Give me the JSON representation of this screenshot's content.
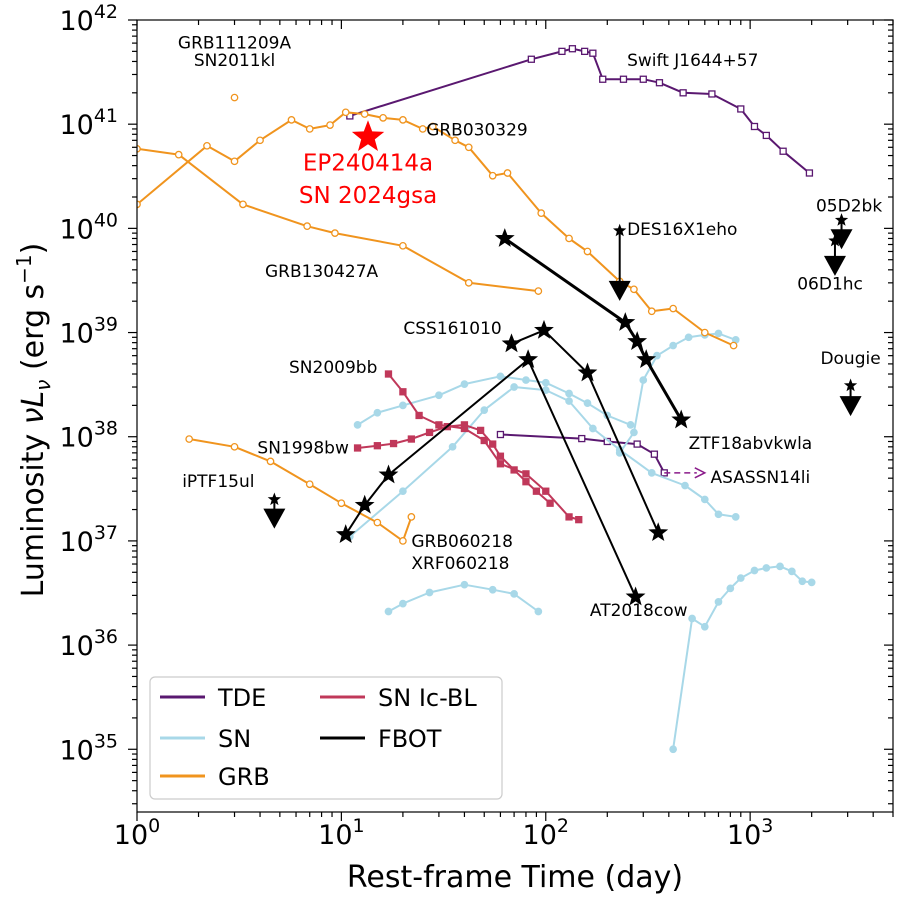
{
  "chart_data": {
    "type": "line",
    "xlabel": "Rest-frame Time (day)",
    "ylabel_main": "Luminosity ",
    "ylabel_sym": "νL",
    "ylabel_sub": "ν",
    "ylabel_unit_a": " (erg s",
    "ylabel_unit_exp": "−1",
    "ylabel_unit_b": ")",
    "xscale": "log",
    "yscale": "log",
    "xlim": [
      1,
      5000
    ],
    "ylim": [
      2.5e+34,
      1e+42
    ],
    "x_ticks": [
      {
        "value": 1,
        "base": "10",
        "exp": "0"
      },
      {
        "value": 10,
        "base": "10",
        "exp": "1"
      },
      {
        "value": 100,
        "base": "10",
        "exp": "2"
      },
      {
        "value": 1000,
        "base": "10",
        "exp": "3"
      }
    ],
    "y_ticks": [
      {
        "value": 1e+35,
        "base": "10",
        "exp": "35"
      },
      {
        "value": 1e+36,
        "base": "10",
        "exp": "36"
      },
      {
        "value": 1e+37,
        "base": "10",
        "exp": "37"
      },
      {
        "value": 1e+38,
        "base": "10",
        "exp": "38"
      },
      {
        "value": 1e+39,
        "base": "10",
        "exp": "39"
      },
      {
        "value": 1e+40,
        "base": "10",
        "exp": "40"
      },
      {
        "value": 1e+41,
        "base": "10",
        "exp": "41"
      },
      {
        "value": 1e+42,
        "base": "10",
        "exp": "42"
      }
    ],
    "colors": {
      "TDE": "#5a1870",
      "SN": "#a8d8e8",
      "GRB": "#f0941e",
      "SN Ic-BL": "#c0385a",
      "FBOT": "#000000",
      "highlight": "#ff0000"
    },
    "legend": {
      "placement": "lower-left",
      "entries": [
        {
          "label": "TDE",
          "class": "TDE"
        },
        {
          "label": "SN Ic-BL",
          "class": "SN Ic-BL"
        },
        {
          "label": "SN",
          "class": "SN"
        },
        {
          "label": "FBOT",
          "class": "FBOT"
        },
        {
          "label": "GRB",
          "class": "GRB"
        }
      ]
    },
    "series": [
      {
        "class": "TDE",
        "marker": "square",
        "points": [
          [
            11,
            1.2e+41
          ],
          [
            85,
            4.2e+41
          ],
          [
            120,
            5e+41
          ],
          [
            135,
            5.3e+41
          ],
          [
            155,
            5e+41
          ],
          [
            170,
            4.8e+41
          ],
          [
            190,
            2.7e+41
          ],
          [
            240,
            2.7e+41
          ],
          [
            300,
            2.7e+41
          ],
          [
            360,
            2.5e+41
          ],
          [
            470,
            2e+41
          ],
          [
            650,
            1.95e+41
          ],
          [
            900,
            1.4e+41
          ],
          [
            1050,
            9.5e+40
          ],
          [
            1200,
            7.8e+40
          ],
          [
            1450,
            5.5e+40
          ],
          [
            1950,
            3.4e+40
          ]
        ]
      },
      {
        "class": "TDE",
        "marker": "square",
        "points": [
          [
            60,
            1.05e+38
          ],
          [
            150,
            9.6e+37
          ],
          [
            200,
            9e+37
          ],
          [
            280,
            8.5e+37
          ],
          [
            340,
            6.8e+37
          ],
          [
            380,
            4.5e+37
          ]
        ]
      },
      {
        "class": "SN",
        "marker": "circle",
        "points": [
          [
            12,
            1.3e+38
          ],
          [
            15,
            1.7e+38
          ],
          [
            20,
            2e+38
          ],
          [
            30,
            2.5e+38
          ],
          [
            40,
            3.2e+38
          ],
          [
            60,
            3.8e+38
          ],
          [
            80,
            3.5e+38
          ],
          [
            100,
            3.3e+38
          ],
          [
            130,
            2.6e+38
          ],
          [
            160,
            2.1e+38
          ],
          [
            200,
            1.6e+38
          ],
          [
            260,
            1.3e+38
          ]
        ]
      },
      {
        "class": "SN",
        "marker": "circle",
        "points": [
          [
            11,
            1.1e+37
          ],
          [
            20,
            3e+37
          ],
          [
            35,
            8e+37
          ],
          [
            50,
            1.8e+38
          ],
          [
            70,
            3e+38
          ],
          [
            100,
            2.8e+38
          ],
          [
            130,
            2.2e+38
          ],
          [
            170,
            1.2e+38
          ],
          [
            230,
            7.5e+37
          ],
          [
            330,
            4.5e+37
          ],
          [
            480,
            3.4e+37
          ],
          [
            600,
            2.5e+37
          ],
          [
            700,
            1.8e+37
          ],
          [
            850,
            1.7e+37
          ]
        ]
      },
      {
        "class": "SN",
        "marker": "circle",
        "points": [
          [
            17,
            2.1e+36
          ],
          [
            20,
            2.5e+36
          ],
          [
            27,
            3.2e+36
          ],
          [
            40,
            3.8e+36
          ],
          [
            55,
            3.4e+36
          ],
          [
            70,
            3.1e+36
          ],
          [
            92,
            2.1e+36
          ]
        ]
      },
      {
        "class": "SN",
        "marker": "circle",
        "points": [
          [
            230,
            7e+37
          ],
          [
            270,
            1.1e+38
          ],
          [
            300,
            3.5e+38
          ],
          [
            350,
            6e+38
          ],
          [
            420,
            7.5e+38
          ],
          [
            500,
            9e+38
          ],
          [
            600,
            9.5e+38
          ],
          [
            700,
            9.8e+38
          ],
          [
            850,
            8.5e+38
          ]
        ]
      },
      {
        "class": "SN",
        "marker": "circle",
        "points": [
          [
            420,
            1e+35
          ],
          [
            520,
            1.8e+36
          ],
          [
            600,
            1.5e+36
          ],
          [
            700,
            2.6e+36
          ],
          [
            800,
            3.5e+36
          ],
          [
            900,
            4.4e+36
          ],
          [
            1050,
            5.2e+36
          ],
          [
            1200,
            5.5e+36
          ],
          [
            1400,
            5.7e+36
          ],
          [
            1600,
            5.1e+36
          ],
          [
            1800,
            4.1e+36
          ],
          [
            2000,
            4e+36
          ]
        ]
      },
      {
        "class": "GRB",
        "marker": "circle",
        "points": [
          [
            3,
            1.8e+41
          ]
        ]
      },
      {
        "class": "GRB",
        "marker": "circle",
        "points": [
          [
            1,
            1.7e+40
          ],
          [
            2.2,
            6.2e+40
          ],
          [
            3,
            4.4e+40
          ],
          [
            4,
            7e+40
          ],
          [
            5.7,
            1.1e+41
          ],
          [
            7,
            9e+40
          ],
          [
            8.8,
            9.8e+40
          ],
          [
            10.5,
            1.3e+41
          ],
          [
            13,
            1.25e+41
          ],
          [
            16,
            1.15e+41
          ],
          [
            20,
            1.1e+41
          ],
          [
            25,
            9e+40
          ],
          [
            28,
            9.5e+40
          ],
          [
            36,
            7e+40
          ],
          [
            42,
            6e+40
          ],
          [
            55,
            3.2e+40
          ],
          [
            65,
            3.4e+40
          ],
          [
            95,
            1.4e+40
          ],
          [
            130,
            8e+39
          ],
          [
            160,
            6e+39
          ],
          [
            230,
            3.1e+39
          ],
          [
            270,
            2.6e+39
          ],
          [
            330,
            1.6e+39
          ],
          [
            420,
            1.7e+39
          ],
          [
            600,
            1e+39
          ],
          [
            830,
            7.5e+38
          ]
        ]
      },
      {
        "class": "GRB",
        "marker": "circle",
        "points": [
          [
            1,
            5.8e+40
          ],
          [
            1.6,
            5.1e+40
          ],
          [
            3.3,
            1.7e+40
          ],
          [
            6.8,
            1.05e+40
          ],
          [
            9.3,
            9e+39
          ],
          [
            20,
            6.8e+39
          ],
          [
            42,
            3e+39
          ],
          [
            92,
            2.5e+39
          ]
        ]
      },
      {
        "class": "GRB",
        "marker": "circle",
        "points": [
          [
            1.8,
            9.5e+37
          ],
          [
            3,
            8e+37
          ],
          [
            4.5,
            5.8e+37
          ],
          [
            7,
            3.5e+37
          ],
          [
            10,
            2.3e+37
          ],
          [
            15,
            1.5e+37
          ],
          [
            20,
            1e+37
          ],
          [
            22,
            1.7e+37
          ]
        ]
      },
      {
        "class": "SN Ic-BL",
        "marker": "square",
        "points": [
          [
            17,
            4e+38
          ],
          [
            20,
            2.7e+38
          ],
          [
            24,
            1.6e+38
          ],
          [
            30,
            1.3e+38
          ],
          [
            40,
            1.2e+38
          ],
          [
            50,
            9.2e+37
          ],
          [
            60,
            5.5e+37
          ],
          [
            80,
            4.4e+37
          ],
          [
            100,
            3e+37
          ],
          [
            130,
            1.7e+37
          ],
          [
            145,
            1.6e+37
          ]
        ]
      },
      {
        "class": "SN Ic-BL",
        "marker": "square",
        "points": [
          [
            12,
            7.8e+37
          ],
          [
            15,
            8.2e+37
          ],
          [
            18,
            8.6e+37
          ],
          [
            22,
            9.5e+37
          ],
          [
            27,
            1.1e+38
          ],
          [
            33,
            1.25e+38
          ],
          [
            40,
            1.3e+38
          ],
          [
            48,
            1.15e+38
          ],
          [
            55,
            8.5e+37
          ],
          [
            60,
            6.5e+37
          ],
          [
            70,
            4.8e+37
          ],
          [
            80,
            3.7e+37
          ],
          [
            90,
            3e+37
          ],
          [
            105,
            2.3e+37
          ]
        ]
      },
      {
        "class": "FBOT",
        "marker": "star",
        "width": 3,
        "points": [
          [
            63,
            8e+39
          ],
          [
            245,
            1.25e+39
          ],
          [
            280,
            8.2e+38
          ],
          [
            310,
            5.5e+38
          ],
          [
            460,
            1.45e+38
          ]
        ]
      },
      {
        "class": "FBOT",
        "marker": "star",
        "width": 2,
        "points": [
          [
            68,
            7.8e+38
          ],
          [
            98,
            1.05e+39
          ],
          [
            160,
            4.1e+38
          ],
          [
            355,
            1.2e+37
          ]
        ]
      },
      {
        "class": "FBOT",
        "marker": "star",
        "width": 2,
        "points": [
          [
            10.5,
            1.15e+37
          ],
          [
            13,
            2.2e+37
          ],
          [
            17,
            4.3e+37
          ],
          [
            82,
            5.5e+38
          ],
          [
            275,
            2.9e+36
          ]
        ]
      }
    ],
    "upper_limits": [
      {
        "x": 4.7,
        "y": 2.5e+37,
        "to_y": 1.5e+37,
        "color": "#000000"
      },
      {
        "x": 230,
        "y": 9.5e+39,
        "to_y": 2.3e+39,
        "color": "#000000"
      },
      {
        "x": 2800,
        "y": 1.2e+40,
        "to_y": 7.2e+39,
        "color": "#000000"
      },
      {
        "x": 2600,
        "y": 7.6e+39,
        "to_y": 4e+39,
        "color": "#000000"
      },
      {
        "x": 3100,
        "y": 3.1e+38,
        "to_y": 1.8e+38,
        "color": "#000000"
      }
    ],
    "dashed_arrow": {
      "from": [
        380,
        4.5e+37
      ],
      "to": [
        600,
        4.5e+37
      ],
      "color": "#8a1a8a"
    },
    "highlight": {
      "x": 13.5,
      "y": 7.5e+40,
      "color": "#ff0000"
    },
    "annotations": [
      {
        "text": "GRB111209A",
        "x": 3,
        "y": 5.3e+41,
        "anchor": "middle",
        "size": 17
      },
      {
        "text": "SN2011kl",
        "x": 3,
        "y": 3.6e+41,
        "anchor": "middle",
        "size": 17
      },
      {
        "text": "Swift J1644+57",
        "x": 250,
        "y": 3.6e+41,
        "anchor": "start",
        "size": 17
      },
      {
        "text": "GRB030329",
        "x": 26,
        "y": 7.8e+40,
        "anchor": "start",
        "size": 17
      },
      {
        "text": "EP240414a",
        "x": 13.5,
        "y": 3.6e+40,
        "anchor": "middle",
        "size": 23,
        "color": "#ff0000"
      },
      {
        "text": "SN 2024gsa",
        "x": 13.5,
        "y": 1.75e+40,
        "anchor": "middle",
        "size": 23,
        "color": "#ff0000"
      },
      {
        "text": "DES16X1eho",
        "x": 250,
        "y": 8.6e+39,
        "anchor": "start",
        "size": 17
      },
      {
        "text": "05D2bk",
        "x": 2100,
        "y": 1.45e+40,
        "anchor": "start",
        "size": 17
      },
      {
        "text": "06D1hc",
        "x": 1700,
        "y": 2.6e+39,
        "anchor": "start",
        "size": 17
      },
      {
        "text": "GRB130427A",
        "x": 8,
        "y": 3.4e+39,
        "anchor": "middle",
        "size": 17
      },
      {
        "text": "CSS161010",
        "x": 35,
        "y": 9.7e+38,
        "anchor": "middle",
        "size": 17
      },
      {
        "text": "Dougie",
        "x": 3100,
        "y": 5e+38,
        "anchor": "middle",
        "size": 17
      },
      {
        "text": "SN2009bb",
        "x": 15,
        "y": 4.1e+38,
        "anchor": "end",
        "size": 17
      },
      {
        "text": "ZTF18abvkwla",
        "x": 500,
        "y": 7.6e+37,
        "anchor": "start",
        "size": 17
      },
      {
        "text": "SN1998bw",
        "x": 6.5,
        "y": 6.9e+37,
        "anchor": "middle",
        "size": 17
      },
      {
        "text": "ASASSN14li",
        "x": 640,
        "y": 3.6e+37,
        "anchor": "start",
        "size": 17
      },
      {
        "text": "iPTF15ul",
        "x": 2.5,
        "y": 3.3e+37,
        "anchor": "middle",
        "size": 17
      },
      {
        "text": "GRB060218",
        "x": 22,
        "y": 8.7e+36,
        "anchor": "start",
        "size": 17
      },
      {
        "text": "XRF060218",
        "x": 22,
        "y": 5.4e+36,
        "anchor": "start",
        "size": 17
      },
      {
        "text": "AT2018cow",
        "x": 285,
        "y": 1.9e+36,
        "anchor": "middle",
        "size": 17
      }
    ]
  }
}
